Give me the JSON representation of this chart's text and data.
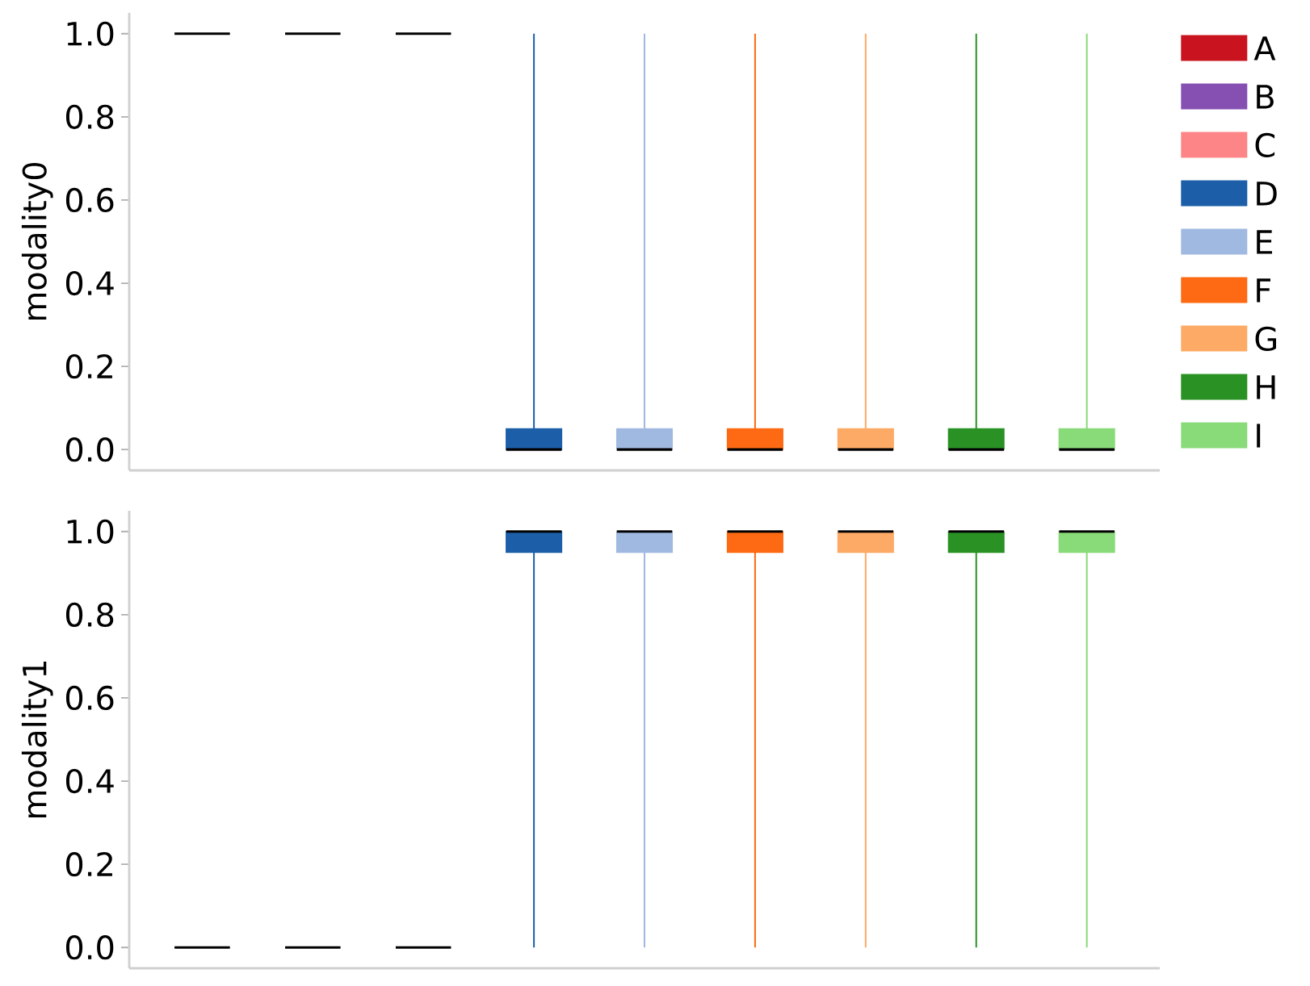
{
  "chart_data": [
    {
      "type": "box",
      "ylabel": "modality0",
      "categories": [
        null,
        null,
        null,
        null,
        null,
        null,
        null,
        null,
        null
      ],
      "series": [
        {
          "name": "A",
          "color": "#c9141f",
          "boxes": [
            {
              "low": 1,
              "q1": 1,
              "median": 1,
              "q3": 1,
              "high": 1
            },
            null,
            null,
            null,
            null,
            null,
            null,
            null,
            null
          ]
        },
        {
          "name": "B",
          "color": "#8650b2",
          "boxes": [
            null,
            {
              "low": 1,
              "q1": 1,
              "median": 1,
              "q3": 1,
              "high": 1
            },
            null,
            null,
            null,
            null,
            null,
            null,
            null
          ]
        },
        {
          "name": "C",
          "color": "#fd8587",
          "boxes": [
            null,
            null,
            {
              "low": 1,
              "q1": 1,
              "median": 1,
              "q3": 1,
              "high": 1
            },
            null,
            null,
            null,
            null,
            null,
            null
          ]
        },
        {
          "name": "D",
          "color": "#1c5fa8",
          "boxes": [
            null,
            null,
            null,
            {
              "low": 0,
              "q1": 0,
              "median": 0,
              "q3": 0.05,
              "high": 1
            },
            null,
            null,
            null,
            null,
            null
          ]
        },
        {
          "name": "E",
          "color": "#a0b9e1",
          "boxes": [
            null,
            null,
            null,
            null,
            {
              "low": 0,
              "q1": 0,
              "median": 0,
              "q3": 0.05,
              "high": 1
            },
            null,
            null,
            null,
            null
          ]
        },
        {
          "name": "F",
          "color": "#fd6a13",
          "boxes": [
            null,
            null,
            null,
            null,
            null,
            {
              "low": 0,
              "q1": 0,
              "median": 0,
              "q3": 0.05,
              "high": 1
            },
            null,
            null,
            null
          ]
        },
        {
          "name": "G",
          "color": "#fcaa65",
          "boxes": [
            null,
            null,
            null,
            null,
            null,
            null,
            {
              "low": 0,
              "q1": 0,
              "median": 0,
              "q3": 0.05,
              "high": 1
            },
            null,
            null
          ]
        },
        {
          "name": "H",
          "color": "#2a9224",
          "boxes": [
            null,
            null,
            null,
            null,
            null,
            null,
            null,
            {
              "low": 0,
              "q1": 0,
              "median": 0,
              "q3": 0.05,
              "high": 1
            },
            null
          ]
        },
        {
          "name": "I",
          "color": "#89da78",
          "boxes": [
            null,
            null,
            null,
            null,
            null,
            null,
            null,
            null,
            {
              "low": 0,
              "q1": 0,
              "median": 0,
              "q3": 0.05,
              "high": 1
            }
          ]
        }
      ],
      "ylim": [
        -0.05,
        1.05
      ],
      "yticks": [
        {
          "value": 0,
          "label": "0.0"
        },
        {
          "value": 0.2,
          "label": "0.2"
        },
        {
          "value": 0.4,
          "label": "0.4"
        },
        {
          "value": 0.6,
          "label": "0.6"
        },
        {
          "value": 0.8,
          "label": "0.8"
        },
        {
          "value": 1,
          "label": "1.0"
        }
      ],
      "tick_labels": "y",
      "legend": "right"
    },
    {
      "type": "box",
      "ylabel": "modality1",
      "categories": [
        null,
        null,
        null,
        null,
        null,
        null,
        null,
        null,
        null
      ],
      "boxes": [
        {
          "low": 0,
          "q1": 0,
          "median": 0,
          "q3": 0,
          "high": 0
        },
        {
          "low": 0,
          "q1": 0,
          "median": 0,
          "q3": 0,
          "high": 0
        },
        {
          "low": 0,
          "q1": 0,
          "median": 0,
          "q3": 0,
          "high": 0
        },
        {
          "low": 0,
          "q1": 0.95,
          "median": 1,
          "q3": 1,
          "high": 1
        },
        {
          "low": 0,
          "q1": 0.95,
          "median": 1,
          "q3": 1,
          "high": 1
        },
        {
          "low": 0,
          "q1": 0.95,
          "median": 1,
          "q3": 1,
          "high": 1
        },
        {
          "low": 0,
          "q1": 0.95,
          "median": 1,
          "q3": 1,
          "high": 1
        },
        {
          "low": 0,
          "q1": 0.95,
          "median": 1,
          "q3": 1,
          "high": 1
        },
        {
          "low": 0,
          "q1": 0.95,
          "median": 1,
          "q3": 1,
          "high": 1
        }
      ],
      "colors": [
        "#c9141f",
        "#8650b2",
        "#fd8587",
        "#1c5fa8",
        "#a0b9e1",
        "#fd6a13",
        "#fcaa65",
        "#2a9224",
        "#89da78"
      ],
      "ylim": [
        -0.05,
        1.05
      ],
      "yticks": [
        {
          "value": 0,
          "label": "0.0"
        },
        {
          "value": 0.2,
          "label": "0.2"
        },
        {
          "value": 0.4,
          "label": "0.4"
        },
        {
          "value": 0.6,
          "label": "0.6"
        },
        {
          "value": 0.8,
          "label": "0.8"
        },
        {
          "value": 1,
          "label": "1.0"
        }
      ],
      "tick_labels": "y"
    }
  ]
}
